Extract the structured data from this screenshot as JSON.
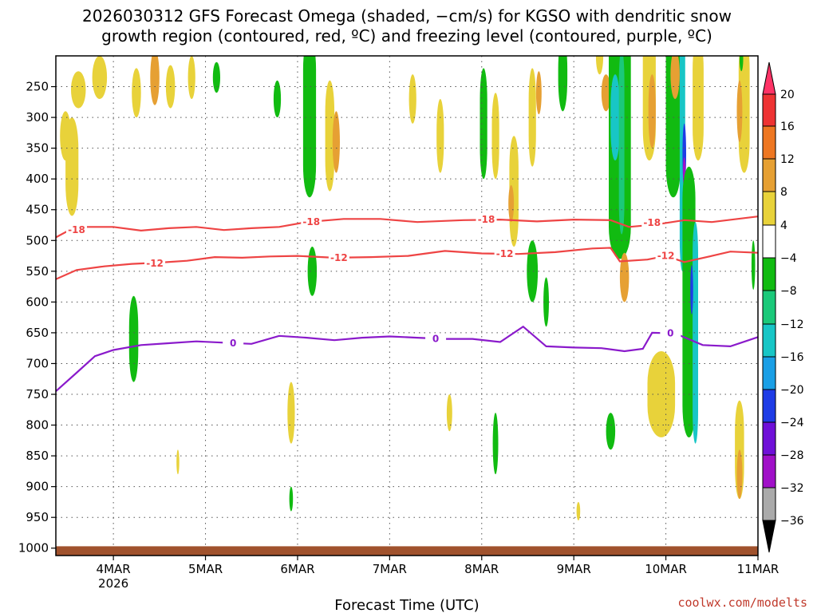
{
  "chart_data": {
    "type": "heatmap",
    "title_lines": [
      "2026030312 GFS Forecast Omega (shaded, −cm/s) for KGSO with dendritic snow",
      "growth region (contoured, red, ºC) and freezing level (contoured, purple, ºC)"
    ],
    "xlabel": "Forecast Time (UTC)",
    "ylabel": "",
    "credit": "coolwx.com/modelts",
    "x_ticks": [
      {
        "label": "4MAR",
        "sublabel": "2026",
        "day": 1
      },
      {
        "label": "5MAR",
        "sublabel": "",
        "day": 2
      },
      {
        "label": "6MAR",
        "sublabel": "",
        "day": 3
      },
      {
        "label": "7MAR",
        "sublabel": "",
        "day": 4
      },
      {
        "label": "8MAR",
        "sublabel": "",
        "day": 5
      },
      {
        "label": "9MAR",
        "sublabel": "",
        "day": 6
      },
      {
        "label": "10MAR",
        "sublabel": "",
        "day": 7
      },
      {
        "label": "11MAR",
        "sublabel": "",
        "day": 8
      }
    ],
    "x_range_days": [
      0.375,
      8.0
    ],
    "y_ticks": [
      250,
      300,
      350,
      400,
      450,
      500,
      550,
      600,
      650,
      700,
      750,
      800,
      850,
      900,
      950,
      1000
    ],
    "y_range_hpa": [
      200,
      1012
    ],
    "surface_hpa": 997,
    "colorbar": {
      "labels": [
        "20",
        "16",
        "12",
        "8",
        "4",
        "−4",
        "−8",
        "−12",
        "−16",
        "−20",
        "−24",
        "−28",
        "−32",
        "−36"
      ],
      "colors": [
        "#ff3366",
        "#ee3333",
        "#ee7722",
        "#e6a033",
        "#e8d23a",
        "#ffffff",
        "#11bb11",
        "#1bc97a",
        "#18c6c6",
        "#1a9fe6",
        "#1e3ce6",
        "#6f10d8",
        "#a010c8",
        "#aaaaaa",
        "#000000"
      ]
    },
    "omega_blobs": [
      {
        "day": 0.55,
        "p": 380,
        "dd": 0.07,
        "dp": 80,
        "v": 7
      },
      {
        "day": 0.48,
        "p": 330,
        "dd": 0.06,
        "dp": 40,
        "v": 5
      },
      {
        "day": 0.62,
        "p": 255,
        "dd": 0.08,
        "dp": 30,
        "v": 5
      },
      {
        "day": 0.85,
        "p": 235,
        "dd": 0.08,
        "dp": 35,
        "v": 5
      },
      {
        "day": 1.25,
        "p": 260,
        "dd": 0.05,
        "dp": 40,
        "v": 6
      },
      {
        "day": 1.45,
        "p": 235,
        "dd": 0.05,
        "dp": 45,
        "v": 10
      },
      {
        "day": 1.62,
        "p": 250,
        "dd": 0.05,
        "dp": 35,
        "v": 5
      },
      {
        "day": 1.85,
        "p": 235,
        "dd": 0.04,
        "dp": 35,
        "v": 5
      },
      {
        "day": 2.12,
        "p": 235,
        "dd": 0.04,
        "dp": 25,
        "v": -5
      },
      {
        "day": 1.22,
        "p": 660,
        "dd": 0.05,
        "dp": 70,
        "v": -6
      },
      {
        "day": 2.78,
        "p": 270,
        "dd": 0.04,
        "dp": 30,
        "v": -6
      },
      {
        "day": 3.13,
        "p": 300,
        "dd": 0.07,
        "dp": 130,
        "v": -6
      },
      {
        "day": 3.35,
        "p": 330,
        "dd": 0.05,
        "dp": 90,
        "v": 5
      },
      {
        "day": 3.42,
        "p": 340,
        "dd": 0.04,
        "dp": 50,
        "v": 9
      },
      {
        "day": 3.16,
        "p": 550,
        "dd": 0.05,
        "dp": 40,
        "v": -6
      },
      {
        "day": 2.93,
        "p": 780,
        "dd": 0.04,
        "dp": 50,
        "v": 5
      },
      {
        "day": 2.93,
        "p": 920,
        "dd": 0.02,
        "dp": 20,
        "v": -6
      },
      {
        "day": 4.25,
        "p": 270,
        "dd": 0.04,
        "dp": 40,
        "v": 5
      },
      {
        "day": 4.55,
        "p": 330,
        "dd": 0.04,
        "dp": 60,
        "v": 5
      },
      {
        "day": 5.02,
        "p": 310,
        "dd": 0.04,
        "dp": 90,
        "v": -6
      },
      {
        "day": 5.15,
        "p": 330,
        "dd": 0.04,
        "dp": 70,
        "v": 5
      },
      {
        "day": 5.35,
        "p": 420,
        "dd": 0.05,
        "dp": 90,
        "v": 5
      },
      {
        "day": 5.32,
        "p": 440,
        "dd": 0.03,
        "dp": 30,
        "v": 9
      },
      {
        "day": 5.55,
        "p": 300,
        "dd": 0.04,
        "dp": 80,
        "v": 5
      },
      {
        "day": 5.62,
        "p": 260,
        "dd": 0.03,
        "dp": 35,
        "v": 9
      },
      {
        "day": 5.88,
        "p": 230,
        "dd": 0.05,
        "dp": 60,
        "v": -6
      },
      {
        "day": 6.28,
        "p": 200,
        "dd": 0.04,
        "dp": 30,
        "v": 5
      },
      {
        "day": 6.35,
        "p": 260,
        "dd": 0.05,
        "dp": 30,
        "v": 9
      },
      {
        "day": 6.5,
        "p": 330,
        "dd": 0.12,
        "dp": 200,
        "v": -6
      },
      {
        "day": 6.45,
        "p": 300,
        "dd": 0.05,
        "dp": 70,
        "v": -13
      },
      {
        "day": 6.52,
        "p": 340,
        "dd": 0.03,
        "dp": 150,
        "v": -10
      },
      {
        "day": 6.55,
        "p": 560,
        "dd": 0.05,
        "dp": 40,
        "v": 9
      },
      {
        "day": 6.82,
        "p": 250,
        "dd": 0.07,
        "dp": 120,
        "v": 5
      },
      {
        "day": 6.85,
        "p": 290,
        "dd": 0.04,
        "dp": 60,
        "v": 9
      },
      {
        "day": 7.08,
        "p": 280,
        "dd": 0.08,
        "dp": 150,
        "v": -7
      },
      {
        "day": 7.18,
        "p": 300,
        "dd": 0.03,
        "dp": 250,
        "v": -14
      },
      {
        "day": 7.2,
        "p": 360,
        "dd": 0.02,
        "dp": 50,
        "v": -22
      },
      {
        "day": 7.2,
        "p": 390,
        "dd": 0.015,
        "dp": 25,
        "v": -31
      },
      {
        "day": 7.25,
        "p": 600,
        "dd": 0.07,
        "dp": 220,
        "v": -7
      },
      {
        "day": 7.32,
        "p": 650,
        "dd": 0.03,
        "dp": 180,
        "v": -13
      },
      {
        "day": 7.28,
        "p": 580,
        "dd": 0.015,
        "dp": 40,
        "v": -22
      },
      {
        "day": 7.35,
        "p": 270,
        "dd": 0.06,
        "dp": 100,
        "v": 5
      },
      {
        "day": 7.1,
        "p": 230,
        "dd": 0.05,
        "dp": 40,
        "v": 9
      },
      {
        "day": 6.95,
        "p": 750,
        "dd": 0.15,
        "dp": 70,
        "v": 5
      },
      {
        "day": 7.85,
        "p": 280,
        "dd": 0.06,
        "dp": 110,
        "v": 5
      },
      {
        "day": 7.8,
        "p": 290,
        "dd": 0.03,
        "dp": 50,
        "v": 9
      },
      {
        "day": 7.8,
        "p": 840,
        "dd": 0.05,
        "dp": 80,
        "v": 5
      },
      {
        "day": 7.8,
        "p": 880,
        "dd": 0.03,
        "dp": 40,
        "v": 9
      },
      {
        "day": 7.82,
        "p": 205,
        "dd": 0.02,
        "dp": 20,
        "v": -6
      },
      {
        "day": 7.95,
        "p": 540,
        "dd": 0.02,
        "dp": 40,
        "v": -6
      },
      {
        "day": 1.7,
        "p": 860,
        "dd": 0.015,
        "dp": 20,
        "v": 5
      },
      {
        "day": 4.65,
        "p": 780,
        "dd": 0.03,
        "dp": 30,
        "v": 5
      },
      {
        "day": 5.15,
        "p": 830,
        "dd": 0.03,
        "dp": 50,
        "v": -6
      },
      {
        "day": 5.55,
        "p": 550,
        "dd": 0.06,
        "dp": 50,
        "v": -6
      },
      {
        "day": 5.7,
        "p": 600,
        "dd": 0.03,
        "dp": 40,
        "v": -6
      },
      {
        "day": 6.05,
        "p": 940,
        "dd": 0.02,
        "dp": 15,
        "v": 5
      },
      {
        "day": 6.4,
        "p": 810,
        "dd": 0.05,
        "dp": 30,
        "v": -6
      }
    ],
    "contours": [
      {
        "level": "-18",
        "color": "#ee4444",
        "points": [
          [
            0.375,
            495
          ],
          [
            0.5,
            485
          ],
          [
            0.7,
            478
          ],
          [
            1.0,
            478
          ],
          [
            1.3,
            484
          ],
          [
            1.6,
            480
          ],
          [
            1.9,
            478
          ],
          [
            2.2,
            483
          ],
          [
            2.5,
            480
          ],
          [
            2.8,
            478
          ],
          [
            3.1,
            470
          ],
          [
            3.5,
            465
          ],
          [
            3.9,
            465
          ],
          [
            4.3,
            470
          ],
          [
            4.8,
            467
          ],
          [
            5.2,
            466
          ],
          [
            5.6,
            469
          ],
          [
            6.0,
            466
          ],
          [
            6.4,
            467
          ],
          [
            6.6,
            478
          ],
          [
            6.9,
            474
          ],
          [
            7.2,
            467
          ],
          [
            7.5,
            470
          ],
          [
            8.0,
            461
          ]
        ],
        "labels": [
          [
            0.6,
            483
          ],
          [
            3.15,
            470
          ],
          [
            5.05,
            466
          ],
          [
            6.85,
            471
          ]
        ]
      },
      {
        "level": "-12",
        "color": "#ee4444",
        "points": [
          [
            0.375,
            563
          ],
          [
            0.6,
            548
          ],
          [
            0.9,
            542
          ],
          [
            1.2,
            538
          ],
          [
            1.5,
            536
          ],
          [
            1.8,
            533
          ],
          [
            2.1,
            527
          ],
          [
            2.4,
            528
          ],
          [
            2.7,
            526
          ],
          [
            3.0,
            525
          ],
          [
            3.4,
            528
          ],
          [
            3.8,
            527
          ],
          [
            4.2,
            525
          ],
          [
            4.6,
            517
          ],
          [
            5.0,
            521
          ],
          [
            5.4,
            522
          ],
          [
            5.8,
            519
          ],
          [
            6.2,
            513
          ],
          [
            6.4,
            512
          ],
          [
            6.5,
            534
          ],
          [
            6.8,
            531
          ],
          [
            7.0,
            525
          ],
          [
            7.2,
            535
          ],
          [
            7.5,
            525
          ],
          [
            7.7,
            518
          ],
          [
            8.0,
            520
          ]
        ],
        "labels": [
          [
            1.45,
            537
          ],
          [
            3.45,
            528
          ],
          [
            5.25,
            522
          ],
          [
            7.0,
            525
          ]
        ]
      },
      {
        "level": "0",
        "color": "#8a1acb",
        "points": [
          [
            0.375,
            745
          ],
          [
            0.6,
            715
          ],
          [
            0.8,
            688
          ],
          [
            1.0,
            678
          ],
          [
            1.3,
            670
          ],
          [
            1.6,
            667
          ],
          [
            1.9,
            664
          ],
          [
            2.2,
            666
          ],
          [
            2.5,
            668
          ],
          [
            2.8,
            655
          ],
          [
            3.1,
            658
          ],
          [
            3.4,
            662
          ],
          [
            3.7,
            658
          ],
          [
            4.0,
            656
          ],
          [
            4.3,
            658
          ],
          [
            4.6,
            660
          ],
          [
            4.9,
            660
          ],
          [
            5.2,
            665
          ],
          [
            5.45,
            640
          ],
          [
            5.7,
            672
          ],
          [
            6.0,
            674
          ],
          [
            6.3,
            675
          ],
          [
            6.55,
            680
          ],
          [
            6.75,
            676
          ],
          [
            6.85,
            650
          ],
          [
            7.1,
            651
          ],
          [
            7.4,
            670
          ],
          [
            7.7,
            672
          ],
          [
            8.0,
            657
          ]
        ],
        "labels": [
          [
            2.3,
            667
          ],
          [
            4.5,
            660
          ],
          [
            7.05,
            651
          ]
        ]
      }
    ]
  }
}
